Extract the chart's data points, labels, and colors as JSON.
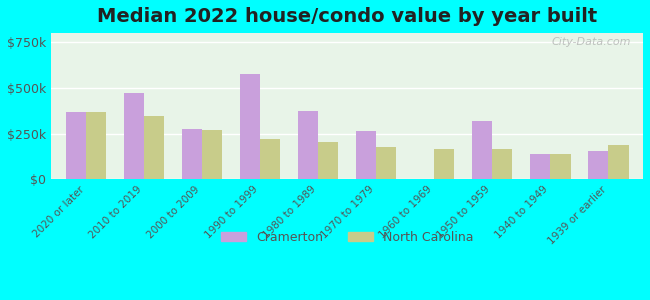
{
  "title": "Median 2022 house/condo value by year built",
  "categories": [
    "2020 or later",
    "2010 to 2019",
    "2000 to 2009",
    "1990 to 1999",
    "1980 to 1989",
    "1970 to 1979",
    "1960 to 1969",
    "1950 to 1959",
    "1940 to 1949",
    "1939 or earlier"
  ],
  "cramerton": [
    370000,
    470000,
    275000,
    575000,
    375000,
    265000,
    0,
    320000,
    140000,
    155000
  ],
  "north_carolina": [
    370000,
    345000,
    270000,
    220000,
    205000,
    175000,
    165000,
    165000,
    140000,
    185000
  ],
  "cramerton_color": "#c9a0dc",
  "nc_color": "#c8cc8a",
  "ylim": [
    0,
    800000
  ],
  "yticks": [
    0,
    250000,
    500000,
    750000
  ],
  "ytick_labels": [
    "$0",
    "$250k",
    "$500k",
    "$750k"
  ],
  "background_color": "#00ffff",
  "plot_bg_top": "#e8f4e8",
  "plot_bg_bottom": "#f5f5e0",
  "title_fontsize": 14,
  "watermark": "City-Data.com",
  "legend_labels": [
    "Cramerton",
    "North Carolina"
  ]
}
